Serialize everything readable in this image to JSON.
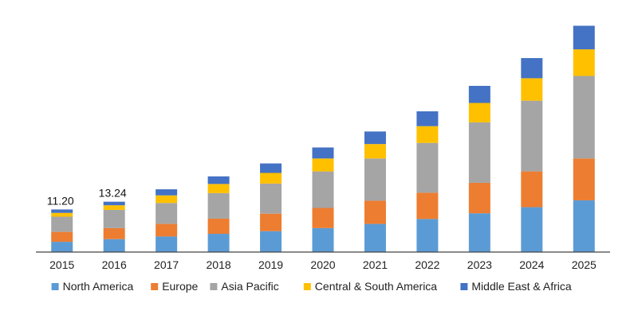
{
  "chart_data": {
    "type": "bar",
    "stacked": true,
    "title": "",
    "xlabel": "",
    "ylabel": "",
    "categories": [
      "2015",
      "2016",
      "2017",
      "2018",
      "2019",
      "2020",
      "2021",
      "2022",
      "2023",
      "2024",
      "2025"
    ],
    "ylim": [
      0,
      60
    ],
    "grid": false,
    "legend_position": "bottom",
    "series": [
      {
        "name": "North America",
        "color": "#5B9BD5",
        "values": [
          2.7,
          3.4,
          4.1,
          4.8,
          5.5,
          6.3,
          7.4,
          8.7,
          10.2,
          11.8,
          13.6
        ]
      },
      {
        "name": "Europe",
        "color": "#ED7D31",
        "values": [
          2.6,
          2.9,
          3.3,
          4.0,
          4.6,
          5.3,
          6.1,
          6.9,
          8.0,
          9.4,
          11.0
        ]
      },
      {
        "name": "Asia Pacific",
        "color": "#A5A5A5",
        "values": [
          4.0,
          4.8,
          5.5,
          6.7,
          7.9,
          9.6,
          11.1,
          13.1,
          15.9,
          18.6,
          21.7
        ]
      },
      {
        "name": "Central & South America",
        "color": "#FFC000",
        "values": [
          1.0,
          1.2,
          2.0,
          2.4,
          2.8,
          3.4,
          3.8,
          4.4,
          5.1,
          5.9,
          7.0
        ]
      },
      {
        "name": "Middle East & Africa",
        "color": "#4472C4",
        "values": [
          0.9,
          0.94,
          1.6,
          2.0,
          2.5,
          2.9,
          3.3,
          3.9,
          4.5,
          5.3,
          6.2
        ]
      }
    ],
    "annotations": [
      {
        "category": "2015",
        "text": "11.20"
      },
      {
        "category": "2016",
        "text": "13.24"
      }
    ]
  }
}
